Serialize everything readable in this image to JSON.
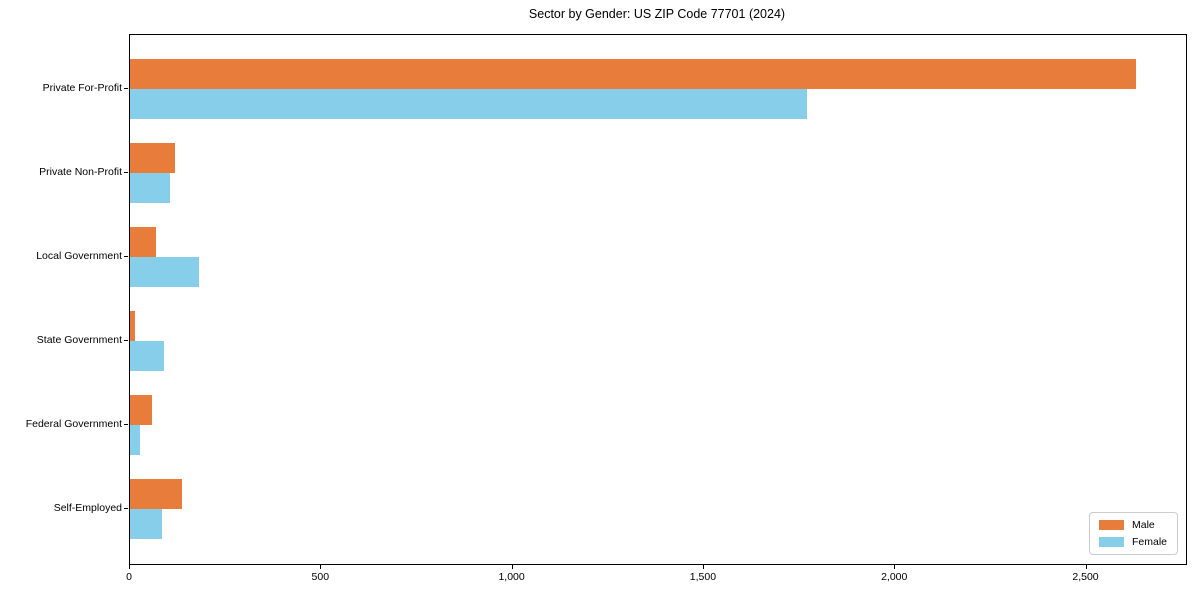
{
  "chart_data": {
    "type": "bar",
    "orientation": "horizontal",
    "title": "Sector by Gender: US ZIP Code 77701 (2024)",
    "categories": [
      "Private For-Profit",
      "Private Non-Profit",
      "Local Government",
      "State Government",
      "Federal Government",
      "Self-Employed"
    ],
    "series": [
      {
        "name": "Male",
        "color": "#E87D3B",
        "values": [
          2630,
          118,
          68,
          12,
          57,
          136
        ]
      },
      {
        "name": "Female",
        "color": "#87CEEB",
        "values": [
          1770,
          105,
          180,
          90,
          26,
          84
        ]
      }
    ],
    "xlim": [
      0,
      2760
    ],
    "x_ticks": [
      {
        "value": 0,
        "label": "0"
      },
      {
        "value": 500,
        "label": "500"
      },
      {
        "value": 1000,
        "label": "1,000"
      },
      {
        "value": 1500,
        "label": "1,500"
      },
      {
        "value": 2000,
        "label": "2,000"
      },
      {
        "value": 2500,
        "label": "2,500"
      }
    ],
    "grid": false,
    "legend_position": "lower right",
    "colors": {
      "background": "#FFFFFF",
      "spine": "#000000",
      "legend_border": "#CCCCCC"
    }
  }
}
